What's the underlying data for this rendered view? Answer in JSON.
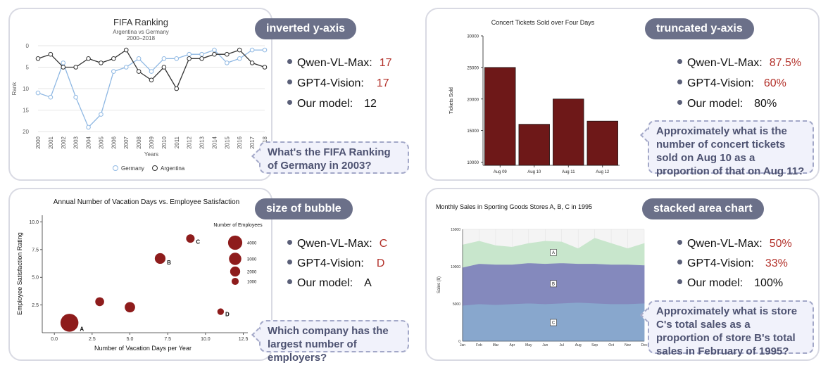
{
  "panels": [
    {
      "tag": "inverted  y-axis",
      "question": "What's the FIFA Ranking of Germany in 2003?",
      "results": [
        {
          "model": "Qwen-VL-Max:",
          "value": "17",
          "wrong": true
        },
        {
          "model": "GPT4-Vision:",
          "value": "17",
          "wrong": true
        },
        {
          "model": "Our model:",
          "value": "12",
          "wrong": false
        }
      ]
    },
    {
      "tag": "truncated y-axis",
      "question": "Approximately what is the number of concert tickets sold on Aug 10 as a proportion of that on Aug 11?",
      "results": [
        {
          "model": "Qwen-VL-Max:",
          "value": "87.5%",
          "wrong": true
        },
        {
          "model": "GPT4-Vision:",
          "value": "60%",
          "wrong": true
        },
        {
          "model": "Our model:",
          "value": "80%",
          "wrong": false
        }
      ]
    },
    {
      "tag": "size of bubble",
      "question": "Which company has the largest number of employers?",
      "results": [
        {
          "model": "Qwen-VL-Max:",
          "value": "C",
          "wrong": true
        },
        {
          "model": "GPT4-Vision:",
          "value": "D",
          "wrong": true
        },
        {
          "model": "Our model:",
          "value": "A",
          "wrong": false
        }
      ]
    },
    {
      "tag": "stacked area chart",
      "question": "Approximately what is store C's total sales as a proportion of store B's total sales in February of 1995?",
      "results": [
        {
          "model": "Qwen-VL-Max:",
          "value": "50%",
          "wrong": true
        },
        {
          "model": "GPT4-Vision:",
          "value": "33%",
          "wrong": true
        },
        {
          "model": "Our model:",
          "value": "100%",
          "wrong": false
        }
      ]
    }
  ],
  "colors": {
    "germany": "#8fb8e3",
    "argentina": "#333333",
    "bar": "#6e1818",
    "bubble": "#8e1c1c",
    "area_a": "#c8e6cc",
    "area_b": "#8489bd",
    "area_c": "#88a7cd",
    "wrong": "#b3322b",
    "tag_bg": "#6b7089"
  },
  "chart_data": [
    {
      "type": "line",
      "title": "FIFA Ranking",
      "subtitle": "Argentina vs Germany",
      "subtitle2": "2000–2018",
      "xlabel": "Years",
      "ylabel": "Rank",
      "y_inverted": true,
      "ylim": [
        0,
        20
      ],
      "yticks": [
        0,
        5,
        10,
        15,
        20
      ],
      "x": [
        "2000",
        "2001",
        "2002",
        "2003",
        "2004",
        "2005",
        "2006",
        "2007",
        "2008",
        "2009",
        "2010",
        "2011",
        "2012",
        "2013",
        "2014",
        "2015",
        "2016",
        "2017",
        "2018"
      ],
      "series": [
        {
          "name": "Germany",
          "values": [
            11,
            12,
            4,
            12,
            19,
            16,
            6,
            5,
            3,
            6,
            3,
            3,
            2,
            2,
            1,
            4,
            3,
            1,
            1
          ]
        },
        {
          "name": "Argentina",
          "values": [
            3,
            2,
            5,
            5,
            3,
            4,
            3,
            1,
            6,
            8,
            5,
            10,
            3,
            3,
            2,
            2,
            1,
            4,
            5
          ]
        }
      ],
      "legend": "bottom",
      "grid": true
    },
    {
      "type": "bar",
      "title": "Concert Tickets Sold over Four Days",
      "ylabel": "Tickets Sold",
      "categories": [
        "Aug 09",
        "Aug 10",
        "Aug 11",
        "Aug 12"
      ],
      "values": [
        25000,
        16000,
        20000,
        16500
      ],
      "ylim": [
        9500,
        30000
      ],
      "yticks": [
        10000,
        15000,
        20000,
        25000,
        30000
      ]
    },
    {
      "type": "scatter",
      "title": "Annual Number of Vacation Days vs. Employee Satisfaction",
      "xlabel": "Number of Vacation Days per Year",
      "ylabel": "Employee Satisfaction Rating",
      "xlim": [
        -0.8,
        12.8
      ],
      "ylim": [
        0,
        10.6
      ],
      "xticks": [
        "0.0",
        "2.5",
        "5.0",
        "7.5",
        "10.0",
        "12.5"
      ],
      "yticks": [
        "2.5",
        "5.0",
        "7.5",
        "10.0"
      ],
      "points": [
        {
          "label": "A",
          "x": 1,
          "y": 0.9,
          "employees": 4500
        },
        {
          "label": "",
          "x": 3,
          "y": 2.8,
          "employees": 1100
        },
        {
          "label": "",
          "x": 5,
          "y": 2.3,
          "employees": 1500
        },
        {
          "label": "B",
          "x": 7,
          "y": 6.7,
          "employees": 1600
        },
        {
          "label": "C",
          "x": 9,
          "y": 8.5,
          "employees": 1000
        },
        {
          "label": "D",
          "x": 11,
          "y": 1.9,
          "employees": 600
        }
      ],
      "size_legend": {
        "title": "Number of Employees",
        "values": [
          4000,
          3000,
          2000,
          1000
        ],
        "labels": [
          "4000",
          "3000",
          "2000",
          "1000"
        ]
      }
    },
    {
      "type": "area",
      "stacked": true,
      "title": "Monthly Sales in Sporting Goods Stores A, B, C in 1995",
      "ylabel": "Sales ($)",
      "ylim": [
        0,
        15000
      ],
      "yticks": [
        "0",
        "5000",
        "10000",
        "15000"
      ],
      "categories": [
        "Jan",
        "Feb",
        "Mar",
        "Apr",
        "May",
        "Jun",
        "Jul",
        "Aug",
        "Sep",
        "Oct",
        "Nov",
        "Dec"
      ],
      "series": [
        {
          "name": "C",
          "values": [
            4800,
            5000,
            4900,
            5000,
            5100,
            5000,
            5100,
            5200,
            5100,
            5000,
            5000,
            5100
          ]
        },
        {
          "name": "B",
          "values": [
            5100,
            5400,
            5400,
            5300,
            5400,
            5400,
            5400,
            5200,
            5300,
            5300,
            5300,
            5100
          ]
        },
        {
          "name": "A",
          "values": [
            3000,
            3000,
            2500,
            2300,
            2600,
            3000,
            2800,
            2000,
            3400,
            2800,
            2100,
            2900
          ]
        }
      ]
    }
  ]
}
